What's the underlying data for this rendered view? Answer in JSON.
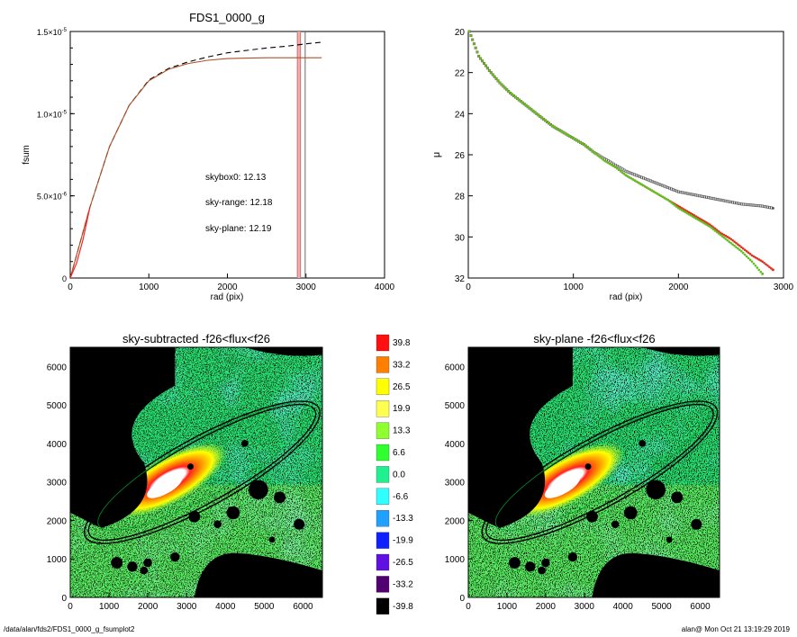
{
  "footer": {
    "path": "/data/alan/fds2/FDS1_0000_g_fsumplot2",
    "stamp": "alan@  Mon Oct 21 13:19:29 2019"
  },
  "chart_data": [
    {
      "type": "line",
      "title": "FDS1_0000_g",
      "xlabel": "rad (pix)",
      "ylabel": "fsum",
      "xlim": [
        0,
        4000
      ],
      "ylim": [
        0,
        1.5e-05
      ],
      "xticks": [
        "0",
        "1000",
        "2000",
        "3000",
        "4000"
      ],
      "yticks": [
        {
          "value": 0,
          "mant": "0",
          "exp": ""
        },
        {
          "value": 5e-06,
          "mant": "5.0×10",
          "exp": "-6"
        },
        {
          "value": 1e-05,
          "mant": "1.0×10",
          "exp": "-5"
        },
        {
          "value": 1.5e-05,
          "mant": "1.5×10",
          "exp": "-5"
        }
      ],
      "annotations": [
        {
          "text": "skybox0: 12.13",
          "color": "#000000"
        },
        {
          "text": "sky-range: 12.18",
          "color": "#ff0000"
        },
        {
          "text": "sky-plane: 12.19",
          "color": "#00dd00"
        }
      ],
      "vlines": [
        2890,
        2930,
        2990
      ],
      "series": [
        {
          "style": "dashed",
          "color": "#000000",
          "x": [
            0,
            250,
            500,
            750,
            1000,
            1250,
            1500,
            1750,
            2000,
            2250,
            2500,
            2750,
            3000,
            3200
          ],
          "y": [
            0,
            4.3e-06,
            8e-06,
            1.05e-05,
            1.205e-05,
            1.275e-05,
            1.315e-05,
            1.345e-05,
            1.37e-05,
            1.385e-05,
            1.4e-05,
            1.41e-05,
            1.425e-05,
            1.435e-05
          ]
        },
        {
          "style": "solid",
          "color": "#b0502a",
          "x": [
            0,
            250,
            500,
            750,
            1000,
            1250,
            1500,
            1750,
            2000,
            2250,
            2500,
            2750,
            3000,
            3200
          ],
          "y": [
            0,
            4.3e-06,
            8e-06,
            1.05e-05,
            1.2e-05,
            1.27e-05,
            1.305e-05,
            1.325e-05,
            1.335e-05,
            1.338e-05,
            1.34e-05,
            1.34e-05,
            1.34e-05,
            1.34e-05
          ]
        }
      ]
    },
    {
      "type": "scatter",
      "title": "",
      "xlabel": "rad (pix)",
      "ylabel": "μ",
      "xlim": [
        0,
        3000
      ],
      "ylim": [
        32,
        20
      ],
      "xticks": [
        "0",
        "1000",
        "2000",
        "3000"
      ],
      "yticks": [
        "20",
        "22",
        "24",
        "26",
        "28",
        "30",
        "32"
      ],
      "series": [
        {
          "color": "#555555",
          "x": [
            10,
            100,
            200,
            300,
            400,
            500,
            600,
            700,
            800,
            900,
            1000,
            1100,
            1200,
            1300,
            1400,
            1500,
            1600,
            1700,
            1800,
            1900,
            2000,
            2100,
            2200,
            2300,
            2400,
            2500,
            2600,
            2700,
            2800,
            2900
          ],
          "y": [
            20.0,
            21.2,
            21.9,
            22.5,
            23.0,
            23.4,
            23.8,
            24.2,
            24.6,
            24.9,
            25.2,
            25.5,
            25.9,
            26.2,
            26.5,
            26.8,
            27.0,
            27.2,
            27.4,
            27.6,
            27.8,
            27.9,
            28.0,
            28.1,
            28.2,
            28.3,
            28.4,
            28.45,
            28.5,
            28.6
          ]
        },
        {
          "color": "#e03020",
          "x": [
            10,
            100,
            200,
            300,
            400,
            500,
            600,
            700,
            800,
            900,
            1000,
            1100,
            1200,
            1300,
            1400,
            1500,
            1600,
            1700,
            1800,
            1900,
            2000,
            2100,
            2200,
            2300,
            2400,
            2500,
            2600,
            2700,
            2800,
            2900
          ],
          "y": [
            20.0,
            21.2,
            21.9,
            22.5,
            23.0,
            23.4,
            23.8,
            24.2,
            24.6,
            24.9,
            25.2,
            25.5,
            25.9,
            26.3,
            26.6,
            27.0,
            27.3,
            27.6,
            27.9,
            28.2,
            28.5,
            28.8,
            29.1,
            29.4,
            29.8,
            30.1,
            30.5,
            30.9,
            31.2,
            31.6
          ]
        },
        {
          "color": "#60c020",
          "x": [
            10,
            100,
            200,
            300,
            400,
            500,
            600,
            700,
            800,
            900,
            1000,
            1100,
            1200,
            1300,
            1400,
            1500,
            1600,
            1700,
            1800,
            1900,
            2000,
            2100,
            2200,
            2300,
            2400,
            2500,
            2600,
            2700,
            2800
          ],
          "y": [
            20.0,
            21.2,
            21.9,
            22.5,
            23.0,
            23.4,
            23.8,
            24.2,
            24.6,
            24.9,
            25.2,
            25.5,
            25.9,
            26.3,
            26.6,
            27.0,
            27.3,
            27.6,
            27.9,
            28.2,
            28.6,
            28.9,
            29.2,
            29.5,
            29.9,
            30.3,
            30.7,
            31.2,
            31.8
          ]
        }
      ]
    },
    {
      "type": "heatmap",
      "title": "sky-subtracted -f26<flux<f26",
      "xlim": [
        0,
        6500
      ],
      "ylim": [
        0,
        6500
      ],
      "xticks": [
        "0",
        "1000",
        "2000",
        "3000",
        "4000",
        "5000",
        "6000"
      ],
      "yticks": [
        "0",
        "1000",
        "2000",
        "3000",
        "4000",
        "5000",
        "6000"
      ]
    },
    {
      "type": "heatmap",
      "title": "sky-plane -f26<flux<f26",
      "xlim": [
        0,
        6500
      ],
      "ylim": [
        0,
        6500
      ],
      "xticks": [
        "0",
        "1000",
        "2000",
        "3000",
        "4000",
        "5000",
        "6000"
      ],
      "yticks": [
        "0",
        "1000",
        "2000",
        "3000",
        "4000",
        "5000",
        "6000"
      ]
    }
  ],
  "colorbar": {
    "levels": [
      {
        "label": "39.8",
        "color": "#ff1010"
      },
      {
        "label": "33.2",
        "color": "#ff8000"
      },
      {
        "label": "26.5",
        "color": "#ffff00"
      },
      {
        "label": "19.9",
        "color": "#ffff50"
      },
      {
        "label": "13.3",
        "color": "#90ff30"
      },
      {
        "label": "6.6",
        "color": "#30ff30"
      },
      {
        "label": "0.0",
        "color": "#20f090"
      },
      {
        "label": "-6.6",
        "color": "#30ffff"
      },
      {
        "label": "-13.3",
        "color": "#20a0ff"
      },
      {
        "label": "-19.9",
        "color": "#1020ff"
      },
      {
        "label": "-26.5",
        "color": "#6010e0"
      },
      {
        "label": "-33.2",
        "color": "#500070"
      },
      {
        "label": "-39.8",
        "color": "#000000"
      }
    ]
  }
}
